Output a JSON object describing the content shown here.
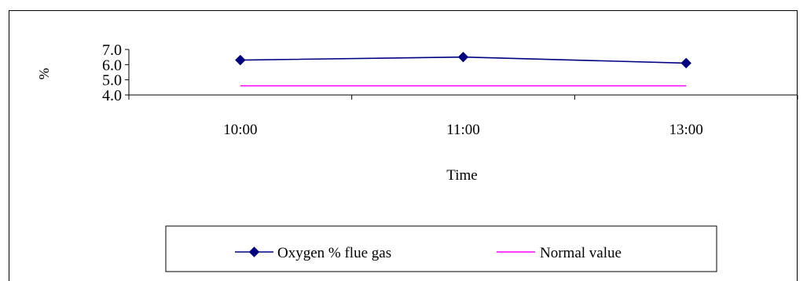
{
  "chart_data": {
    "type": "line",
    "categories": [
      "10:00",
      "11:00",
      "13:00"
    ],
    "series": [
      {
        "name": "Oxygen % flue gas",
        "values": [
          6.3,
          6.5,
          6.1
        ],
        "color": "#000080",
        "marker": "diamond"
      },
      {
        "name": "Normal value",
        "values": [
          4.6,
          4.6,
          4.6
        ],
        "color": "#ff00ff",
        "marker": "none"
      }
    ],
    "y_ticks": [
      "4.0",
      "5.0",
      "6.0",
      "7.0"
    ],
    "ylim": [
      4.0,
      7.0
    ],
    "xlabel": "Time",
    "ylabel": "%",
    "grid": false,
    "legend_position": "bottom"
  }
}
